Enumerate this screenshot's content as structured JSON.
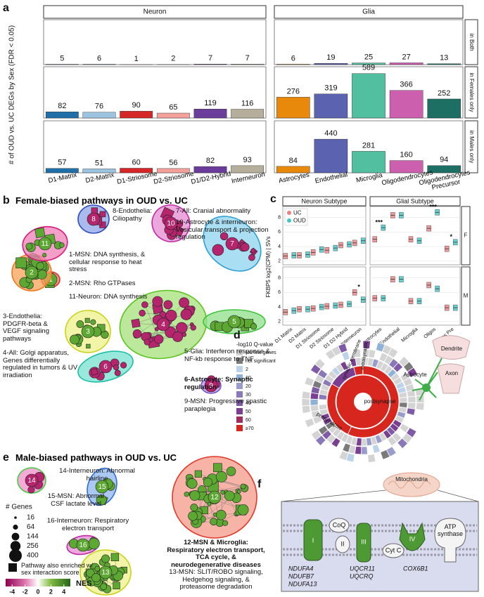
{
  "panel_a": {
    "label": "a",
    "type": "bar",
    "y_label": "# of OUD vs. UC DEGs by Sex (FDR < 0.05)",
    "ylim": [
      0,
      680
    ],
    "rows": [
      "in Both",
      "in Females only",
      "in Males only"
    ],
    "facets": [
      {
        "name": "Neuron",
        "categories": [
          "D1-Matrix",
          "D2-Matrix",
          "D1-Striosome",
          "D2-Striosome",
          "D1/D2-Hybrid",
          "Interneuron"
        ],
        "colors": [
          "#1f6fa8",
          "#9cc3df",
          "#d62728",
          "#f4a09b",
          "#6a3d9a",
          "#b5ae9a"
        ],
        "series": [
          [
            5,
            6,
            1,
            2,
            7,
            7
          ],
          [
            82,
            76,
            90,
            65,
            119,
            116
          ],
          [
            57,
            51,
            60,
            56,
            82,
            93
          ]
        ]
      },
      {
        "name": "Glia",
        "categories": [
          "Astrocytes",
          "Endothelial",
          "Microglia",
          "Oligodendrocytes",
          "Oligodendrocytes Precursor"
        ],
        "colors": [
          "#e8890c",
          "#5b62b0",
          "#52bfa0",
          "#cc5fae",
          "#1e6f63"
        ],
        "series": [
          [
            6,
            19,
            25,
            27,
            13
          ],
          [
            276,
            319,
            589,
            366,
            252
          ],
          [
            84,
            440,
            281,
            160,
            94
          ]
        ]
      }
    ]
  },
  "panel_b": {
    "label": "b",
    "title": "Female-biased pathways in OUD vs. UC",
    "clusters": [
      {
        "id": "8",
        "text": "8-Endothelia: Ciliopathy"
      },
      {
        "id": "7",
        "text": "7-All: Cranial abnormality"
      },
      {
        "id": "10",
        "text": "10-Astrocyte & interneuron: Vesicular transport & projection regulation"
      },
      {
        "id": "1",
        "text": "1-MSN: DNA synthesis, & cellular response to heat stress"
      },
      {
        "id": "2",
        "text": "2-MSN: Rho GTPases"
      },
      {
        "id": "11",
        "text": "11-Neuron: DNA synthesis"
      },
      {
        "id": "3",
        "text": "3-Endothelia: PDGFR-beta & VEGF signaling pathways"
      },
      {
        "id": "4",
        "text": "4-All: Golgi apparatus, Genes differentially regulated in tumors & UV irradiation"
      },
      {
        "id": "5",
        "text": "5-Glia: Interferon response & NF-kb response to TNF"
      },
      {
        "id": "6",
        "text": "6-Astrocyte: Synaptic regulation"
      },
      {
        "id": "9",
        "text": "9-MSN: Progressive spastic paraplegia"
      }
    ]
  },
  "panel_c": {
    "label": "c",
    "type": "box",
    "y_label": "FKBP5 log2(CPM) | SVs",
    "ylim": [
      1.5,
      9.5
    ],
    "yticks": [
      2,
      4,
      6,
      8
    ],
    "series": [
      {
        "name": "UC",
        "color": "#f08080"
      },
      {
        "name": "OUD",
        "color": "#3ec8c8"
      }
    ],
    "facets": [
      {
        "name": "Neuron Subtype",
        "categories": [
          "D1 Matrix",
          "D2 Matrix",
          "D1 Striosome",
          "D2 Striosome",
          "D1 D2 Hybrid",
          "Interneuron"
        ]
      },
      {
        "name": "Glial Subtype",
        "categories": [
          "Astrocytes",
          "Endothelial",
          "Microglia",
          "Oligos",
          "Oligos Pre"
        ]
      }
    ],
    "rows": [
      {
        "name": "F",
        "values": [
          [
            2.7,
            2.8,
            3.2,
            3.5,
            4.2,
            4.5,
            5.0,
            8.3,
            5.0,
            6.5,
            3.7
          ],
          [
            2.8,
            2.9,
            3.6,
            3.8,
            4.3,
            4.8,
            6.6,
            8.3,
            4.8,
            8.7,
            4.6
          ]
        ],
        "annotations": [
          null,
          null,
          null,
          null,
          null,
          null,
          "***",
          null,
          null,
          "***",
          "*"
        ]
      },
      {
        "name": "M",
        "values": [
          [
            3.3,
            3.7,
            3.8,
            4.1,
            4.3,
            6.0,
            5.2,
            7.8,
            4.8,
            7.0,
            3.9
          ],
          [
            3.5,
            3.7,
            4.0,
            4.2,
            4.4,
            5.0,
            5.2,
            7.8,
            4.8,
            6.5,
            3.9
          ]
        ],
        "annotations": [
          null,
          null,
          null,
          null,
          null,
          "*",
          null,
          null,
          null,
          null,
          null
        ]
      }
    ]
  },
  "panel_d": {
    "label": "d",
    "legend_title": "-log10 Q-value",
    "legend": [
      {
        "label": "too few genes",
        "color": "#d4d4d4"
      },
      {
        "label": "not significant",
        "color": "#7a7a7a"
      },
      {
        "label": "2",
        "color": "#bcd3ea"
      },
      {
        "label": "10",
        "color": "#8fb2d9"
      },
      {
        "label": "20",
        "color": "#9a9ccc"
      },
      {
        "label": "30",
        "color": "#8a78b8"
      },
      {
        "label": "40",
        "color": "#7f5aa6"
      },
      {
        "label": "50",
        "color": "#7b3f92"
      },
      {
        "label": "60",
        "color": "#a02c5c"
      },
      {
        "label": "≥70",
        "color": "#d7261e"
      }
    ],
    "sunburst_labels": {
      "post": "postsynapse",
      "pre": "presynapse",
      "membrane": "synaptic membrane",
      "extra": "extrasynaptic"
    },
    "cell_labels": {
      "dendrite": "Dendrite",
      "astrocyte": "Astrocyte",
      "axon": "Axon"
    }
  },
  "panel_e": {
    "label": "e",
    "title": "Male-biased pathways in OUD vs. UC",
    "clusters": [
      {
        "id": "14",
        "text": "14-Interneuron: Abnormal hairline"
      },
      {
        "id": "15",
        "text": "15-MSN: Abnormal CSF lactate level"
      },
      {
        "id": "16",
        "text": "16-Interneuron: Respiratory electron transport"
      },
      {
        "id": "12",
        "text": "12-MSN & Microglia: Respiratory electron transport, TCA cycle, & neurodegenerative diseases"
      },
      {
        "id": "13",
        "text": "13-MSN: SLIT/ROBO signaling, Hedgehog signaling, & proteasome degradation"
      }
    ],
    "size_legend": {
      "title": "# Genes",
      "values": [
        16,
        64,
        144,
        256,
        400
      ]
    },
    "shape_legend": "Pathway also enriched w/ sex interaction score",
    "colorbar": {
      "title": "NES",
      "lim": [
        -5,
        5
      ],
      "ticks": [
        -4,
        -2,
        0,
        2,
        4
      ]
    }
  },
  "panel_f": {
    "label": "f",
    "labels": {
      "mitochondria": "Mitochondria",
      "coq": "CoQ",
      "complex_1": "I",
      "complex_2": "II",
      "complex_3": "III",
      "cytc": "Cyt C",
      "complex_4": "IV",
      "atp": "ATP synthase"
    },
    "genes": {
      "complex_1": [
        "NDUFA4",
        "NDUFB7",
        "NDUFA13"
      ],
      "complex_3": [
        "UQCR11",
        "UQCRQ"
      ],
      "complex_4": [
        "COX6B1"
      ]
    }
  }
}
